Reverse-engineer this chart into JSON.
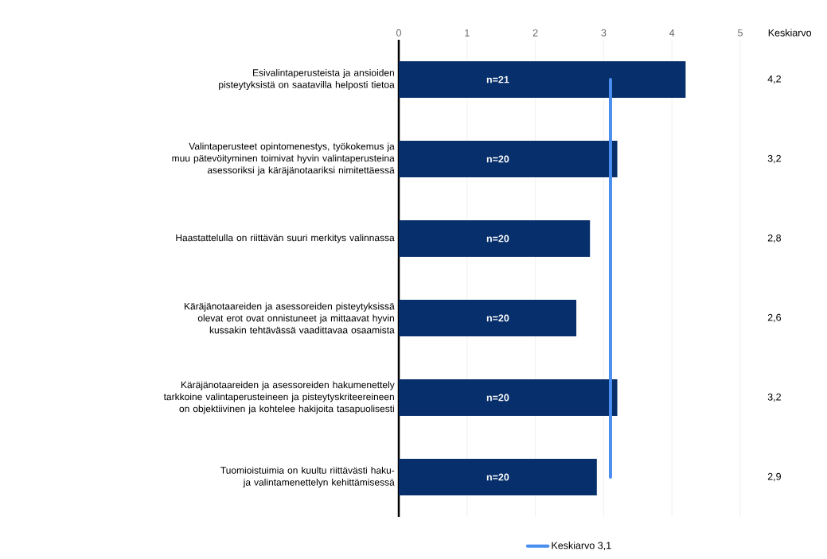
{
  "chart_data": {
    "type": "bar",
    "orientation": "horizontal",
    "categories": [
      "Esivalintaperusteista ja ansioiden pisteytyksistä on saatavilla helposti tietoa",
      "Valintaperusteet opintomenestys, työkokemus ja muu pätevöityminen toimivat hyvin valintaperusteina asessoriksi ja käräjänotaariksi nimitettäessä",
      "Haastattelulla on riittävän suuri merkitys valinnassa",
      "Käräjänotaareiden ja asessoreiden pisteytyksissä olevat erot ovat onnistuneet ja mittaavat hyvin kussakin tehtävässä vaadittavaa osaamista",
      "Käräjänotaareiden ja asessoreiden hakumenettely tarkkoine valintaperusteineen ja pisteytyskriteereineen on objektiivinen ja kohtelee hakijoita tasapuolisesti",
      "Tuomioistuimia on kuultu riittävästi haku- ja valintamenettelyn kehittämisessä"
    ],
    "values": [
      4.2,
      3.2,
      2.8,
      2.6,
      3.2,
      2.9
    ],
    "value_labels": [
      "4,2",
      "3,2",
      "2,8",
      "2,6",
      "3,2",
      "2,9"
    ],
    "color": "#072f6b",
    "xlim": [
      0,
      5
    ],
    "xticks": [
      0,
      1,
      2,
      3,
      4,
      5
    ],
    "grid": "x",
    "ref_lines": [
      {
        "axis": "x",
        "value": 3.1,
        "label": "Keskiarvo 3,1",
        "color": "#4a8ef0"
      }
    ],
    "legend": "bottom",
    "annotations": [
      "Keskiarvo",
      "n=21",
      "n=20",
      "n=20",
      "n=20",
      "n=20",
      "n=20"
    ]
  }
}
